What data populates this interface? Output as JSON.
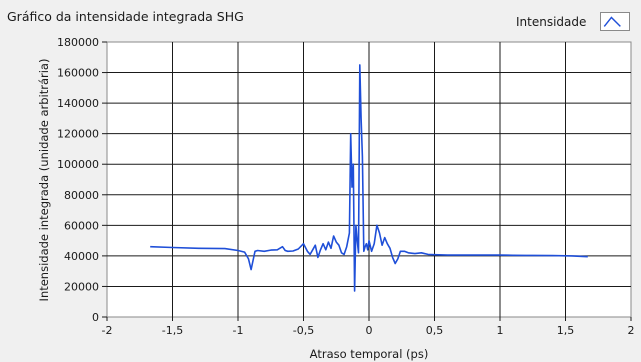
{
  "chart_data": {
    "type": "line",
    "title": "Gráfico da intensidade integrada SHG",
    "xlabel": "Atraso temporal (ps)",
    "ylabel": "Intensidade integrada (unidade arbitrária)",
    "xlim": [
      -2,
      2
    ],
    "ylim": [
      0,
      180000
    ],
    "x_ticks": [
      -2,
      -1.5,
      -1,
      -0.5,
      0,
      0.5,
      1,
      1.5,
      2
    ],
    "x_tick_labels": [
      "-2",
      "-1,5",
      "-1",
      "-0,5",
      "0",
      "0,5",
      "1",
      "1,5",
      "2"
    ],
    "y_ticks": [
      0,
      20000,
      40000,
      60000,
      80000,
      100000,
      120000,
      140000,
      160000,
      180000
    ],
    "y_tick_labels": [
      "0",
      "20000",
      "40000",
      "60000",
      "80000",
      "100000",
      "120000",
      "140000",
      "160000",
      "180000"
    ],
    "grid": true,
    "legend_position": "top-right",
    "series": [
      {
        "name": "Intensidade",
        "color": "#1f4fd8",
        "x": [
          -1.67,
          -1.5,
          -1.3,
          -1.1,
          -1.0,
          -0.95,
          -0.92,
          -0.9,
          -0.89,
          -0.87,
          -0.85,
          -0.8,
          -0.75,
          -0.7,
          -0.66,
          -0.64,
          -0.62,
          -0.58,
          -0.54,
          -0.5,
          -0.47,
          -0.45,
          -0.43,
          -0.41,
          -0.39,
          -0.37,
          -0.35,
          -0.33,
          -0.31,
          -0.29,
          -0.27,
          -0.25,
          -0.23,
          -0.21,
          -0.19,
          -0.17,
          -0.15,
          -0.14,
          -0.13,
          -0.12,
          -0.11,
          -0.1,
          -0.09,
          -0.08,
          -0.07,
          -0.06,
          -0.05,
          -0.04,
          -0.03,
          -0.02,
          -0.01,
          0.0,
          0.02,
          0.04,
          0.06,
          0.08,
          0.1,
          0.12,
          0.14,
          0.16,
          0.18,
          0.2,
          0.22,
          0.24,
          0.27,
          0.3,
          0.35,
          0.4,
          0.45,
          0.5,
          0.6,
          0.7,
          0.8,
          0.9,
          1.0,
          1.1,
          1.2,
          1.25,
          1.4,
          1.55,
          1.67
        ],
        "values": [
          46000,
          45500,
          45000,
          44800,
          43500,
          42500,
          38000,
          31000,
          35000,
          43000,
          43500,
          43000,
          43800,
          44000,
          46000,
          43500,
          43000,
          43200,
          44500,
          48000,
          43000,
          41000,
          44000,
          47000,
          39000,
          44000,
          48000,
          44000,
          49000,
          45000,
          53000,
          49000,
          47000,
          42000,
          41000,
          46000,
          55000,
          120000,
          85000,
          100000,
          17000,
          60000,
          50000,
          42000,
          165000,
          130000,
          105000,
          43000,
          46000,
          48000,
          44000,
          50000,
          43000,
          48000,
          60000,
          55000,
          47000,
          52000,
          48000,
          45000,
          39000,
          35000,
          38000,
          43000,
          43000,
          42000,
          41500,
          42000,
          41000,
          40800,
          40500,
          40500,
          40500,
          40500,
          40500,
          40400,
          40300,
          40300,
          40200,
          40000,
          39500
        ]
      }
    ]
  }
}
